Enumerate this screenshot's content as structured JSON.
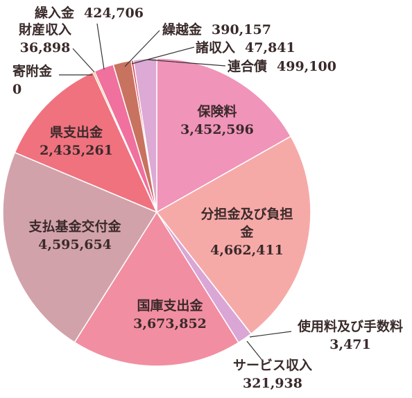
{
  "chart_data": {
    "type": "pie",
    "categories": [
      "保険料",
      "分担金及び負担金",
      "使用料及び手数料",
      "サービス収入",
      "国庫支出金",
      "支払基金交付金",
      "県支出金",
      "寄附金",
      "財産収入",
      "繰入金",
      "繰越金",
      "諸収入",
      "連合債"
    ],
    "values": [
      3452596,
      4662411,
      3471,
      321938,
      3673852,
      4595654,
      2435261,
      0,
      36898,
      424706,
      390157,
      47841,
      499100
    ],
    "value_labels": [
      "3,452,596",
      "4,662,411",
      "3,471",
      "321,938",
      "3,673,852",
      "4,595,654",
      "2,435,261",
      "0",
      "36,898",
      "424,706",
      "390,157",
      "47,841",
      "499,100"
    ],
    "colors": [
      "#f094b9",
      "#f6aaa8",
      "#e89ab8",
      "#d9a6d6",
      "#f28ea2",
      "#d2a2aa",
      "#f0727f",
      "#f7b070",
      "#f5a23c",
      "#f0709e",
      "#c8735f",
      "#e0304e",
      "#dcaad4"
    ]
  }
}
